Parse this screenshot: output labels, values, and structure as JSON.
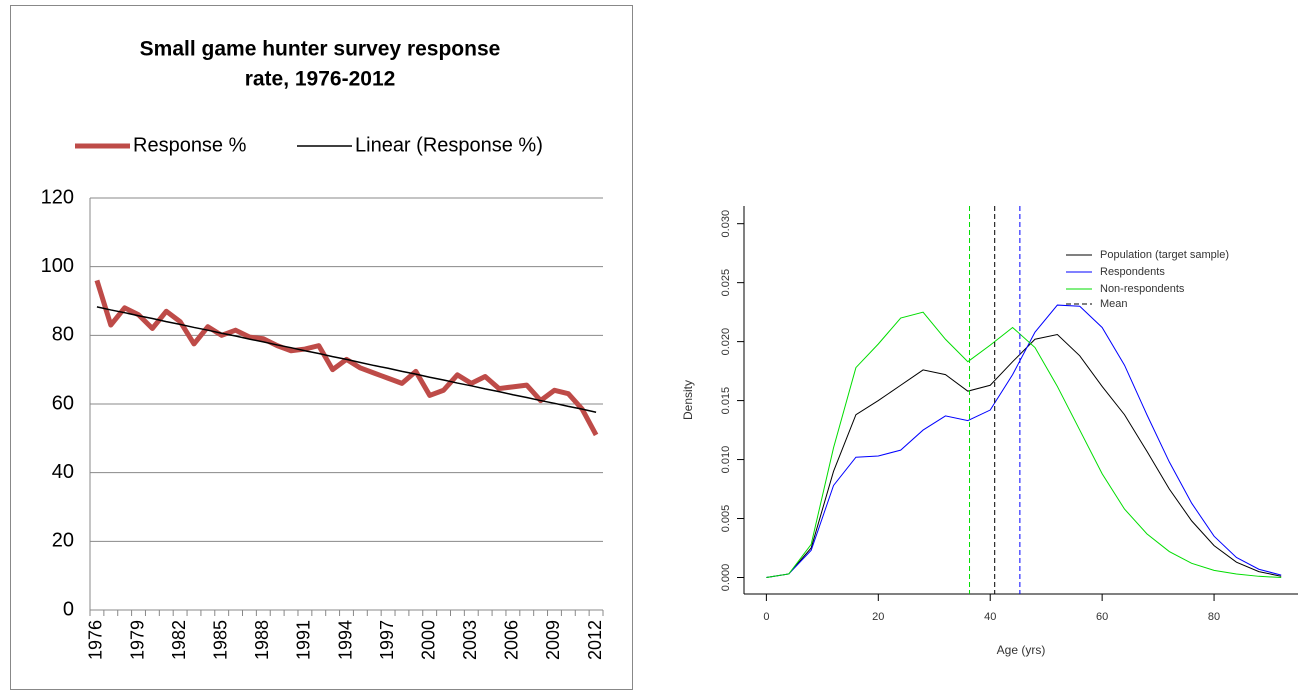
{
  "chart_data": [
    {
      "type": "line",
      "title": [
        "Small game hunter survey response",
        "rate, 1976-2012"
      ],
      "categories": [
        "1976",
        null,
        null,
        "1979",
        null,
        null,
        "1982",
        null,
        null,
        "1985",
        null,
        null,
        "1988",
        null,
        null,
        "1991",
        null,
        null,
        "1994",
        null,
        null,
        "1997",
        null,
        null,
        "2000",
        null,
        null,
        "2003",
        null,
        null,
        "2006",
        null,
        null,
        "2009",
        null,
        null,
        "2012"
      ],
      "series": [
        {
          "name": "Response %",
          "color": "#be4b48",
          "width": 5,
          "values": [
            96,
            83,
            88,
            86,
            82,
            87,
            84,
            77.5,
            82.5,
            80,
            81.5,
            79.5,
            79,
            77,
            75.5,
            76,
            77,
            70,
            73,
            70.5,
            69,
            67.5,
            66,
            69.5,
            62.5,
            64,
            68.5,
            66,
            68,
            64.5,
            65,
            65.5,
            61,
            64,
            63,
            58.5,
            51
          ]
        },
        {
          "name": "Linear (Response %)",
          "color": "#000000",
          "width": 1.5,
          "values": [
            88.3,
            87.4,
            86.6,
            85.7,
            84.9,
            84.0,
            83.2,
            82.3,
            81.5,
            80.6,
            79.8,
            78.9,
            78.1,
            77.2,
            76.4,
            75.5,
            74.7,
            73.8,
            73.0,
            72.1,
            71.2,
            70.4,
            69.5,
            68.7,
            67.8,
            67.0,
            66.1,
            65.3,
            64.4,
            63.6,
            62.7,
            61.9,
            61.0,
            60.2,
            59.3,
            58.5,
            57.6
          ]
        }
      ],
      "ylim": [
        0,
        120
      ],
      "yticks": [
        0,
        20,
        40,
        60,
        80,
        100,
        120
      ],
      "grid": true,
      "legend": "top"
    },
    {
      "type": "density",
      "x_label": "Age (yrs)",
      "y_label": "Density",
      "x": [
        0,
        4,
        8,
        12,
        16,
        20,
        24,
        28,
        32,
        36,
        40,
        44,
        48,
        52,
        56,
        60,
        64,
        68,
        72,
        76,
        80,
        84,
        88,
        92
      ],
      "series": [
        {
          "name": "Population (target sample)",
          "color": "#000000",
          "values": [
            0,
            0.0003,
            0.0025,
            0.009,
            0.0138,
            0.015,
            0.0163,
            0.0176,
            0.0172,
            0.0158,
            0.0163,
            0.0183,
            0.0202,
            0.0206,
            0.0188,
            0.0162,
            0.0138,
            0.0107,
            0.0075,
            0.0048,
            0.0027,
            0.0013,
            0.0005,
            0.0001
          ]
        },
        {
          "name": "Respondents",
          "color": "#0000ff",
          "values": [
            0,
            0.0003,
            0.0023,
            0.0078,
            0.0102,
            0.0103,
            0.0108,
            0.0125,
            0.0137,
            0.0133,
            0.0142,
            0.0172,
            0.0208,
            0.0231,
            0.023,
            0.0212,
            0.018,
            0.0138,
            0.0098,
            0.0063,
            0.0035,
            0.0017,
            0.0007,
            0.0002
          ]
        },
        {
          "name": "Non-respondents",
          "color": "#00dd00",
          "values": [
            0,
            0.0003,
            0.0028,
            0.011,
            0.0178,
            0.0198,
            0.022,
            0.0225,
            0.0202,
            0.0183,
            0.0197,
            0.0212,
            0.0195,
            0.0162,
            0.0125,
            0.0088,
            0.0058,
            0.0037,
            0.0022,
            0.0012,
            0.0006,
            0.0003,
            0.0001,
            0
          ]
        }
      ],
      "mean_lines": {
        "name": "Mean",
        "lines": [
          {
            "color": "#00dd00",
            "value": 36.3
          },
          {
            "color": "#000000",
            "value": 40.8
          },
          {
            "color": "#0000ff",
            "value": 45.3
          }
        ]
      },
      "xlim": [
        -4,
        95
      ],
      "xticks": [
        0,
        20,
        40,
        60,
        80
      ],
      "ylim": [
        -0.0014,
        0.0315
      ],
      "yticks": [
        {
          "value": 0,
          "label": "0.000"
        },
        {
          "value": 0.005,
          "label": "0.005"
        },
        {
          "value": 0.01,
          "label": "0.010"
        },
        {
          "value": 0.015,
          "label": "0.015"
        },
        {
          "value": 0.02,
          "label": "0.020"
        },
        {
          "value": 0.025,
          "label": "0.025"
        },
        {
          "value": 0.03,
          "label": "0.030"
        }
      ],
      "grid": false,
      "legend": "top-right"
    }
  ]
}
